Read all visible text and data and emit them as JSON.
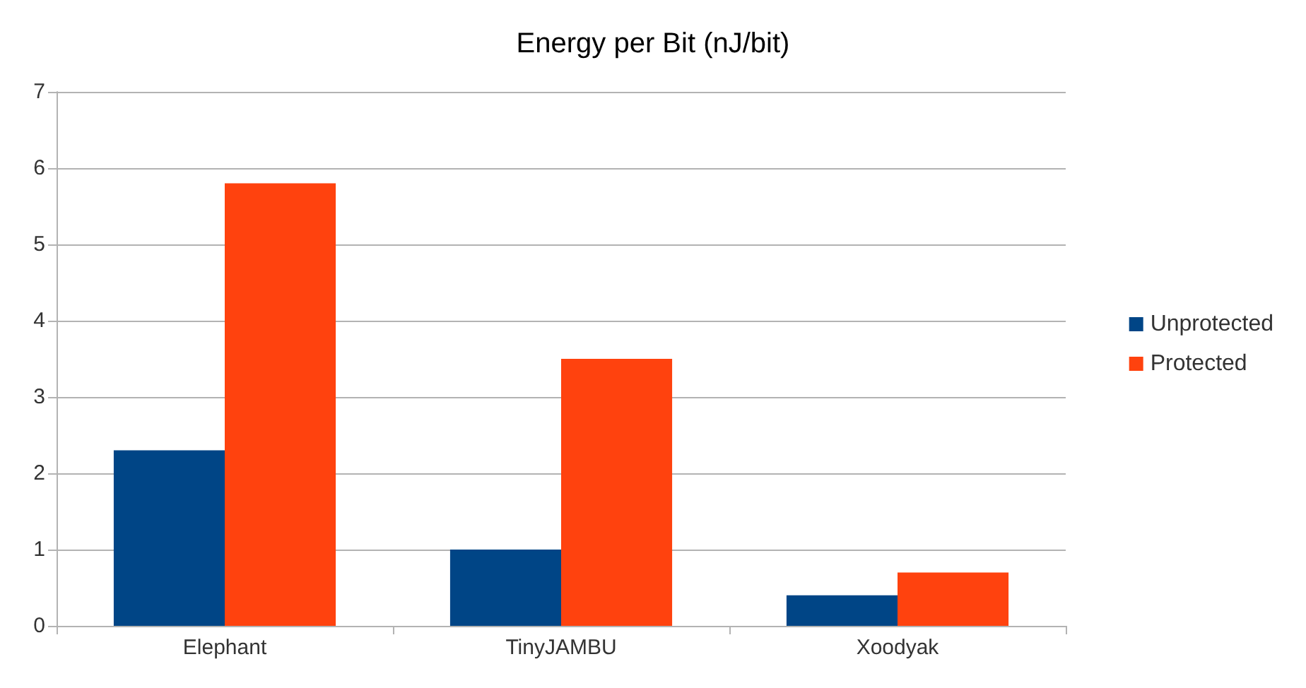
{
  "chart_data": {
    "type": "bar",
    "title": "Energy per Bit (nJ/bit)",
    "categories": [
      "Elephant",
      "TinyJAMBU",
      "Xoodyak"
    ],
    "series": [
      {
        "name": "Unprotected",
        "color": "#004586",
        "values": [
          2.3,
          1.0,
          0.4
        ]
      },
      {
        "name": "Protected",
        "color": "#ff420e",
        "values": [
          5.8,
          3.5,
          0.7
        ]
      }
    ],
    "ylim": [
      0,
      7
    ],
    "yticks": [
      0,
      1,
      2,
      3,
      4,
      5,
      6,
      7
    ],
    "grid": "y",
    "legend": "right"
  }
}
